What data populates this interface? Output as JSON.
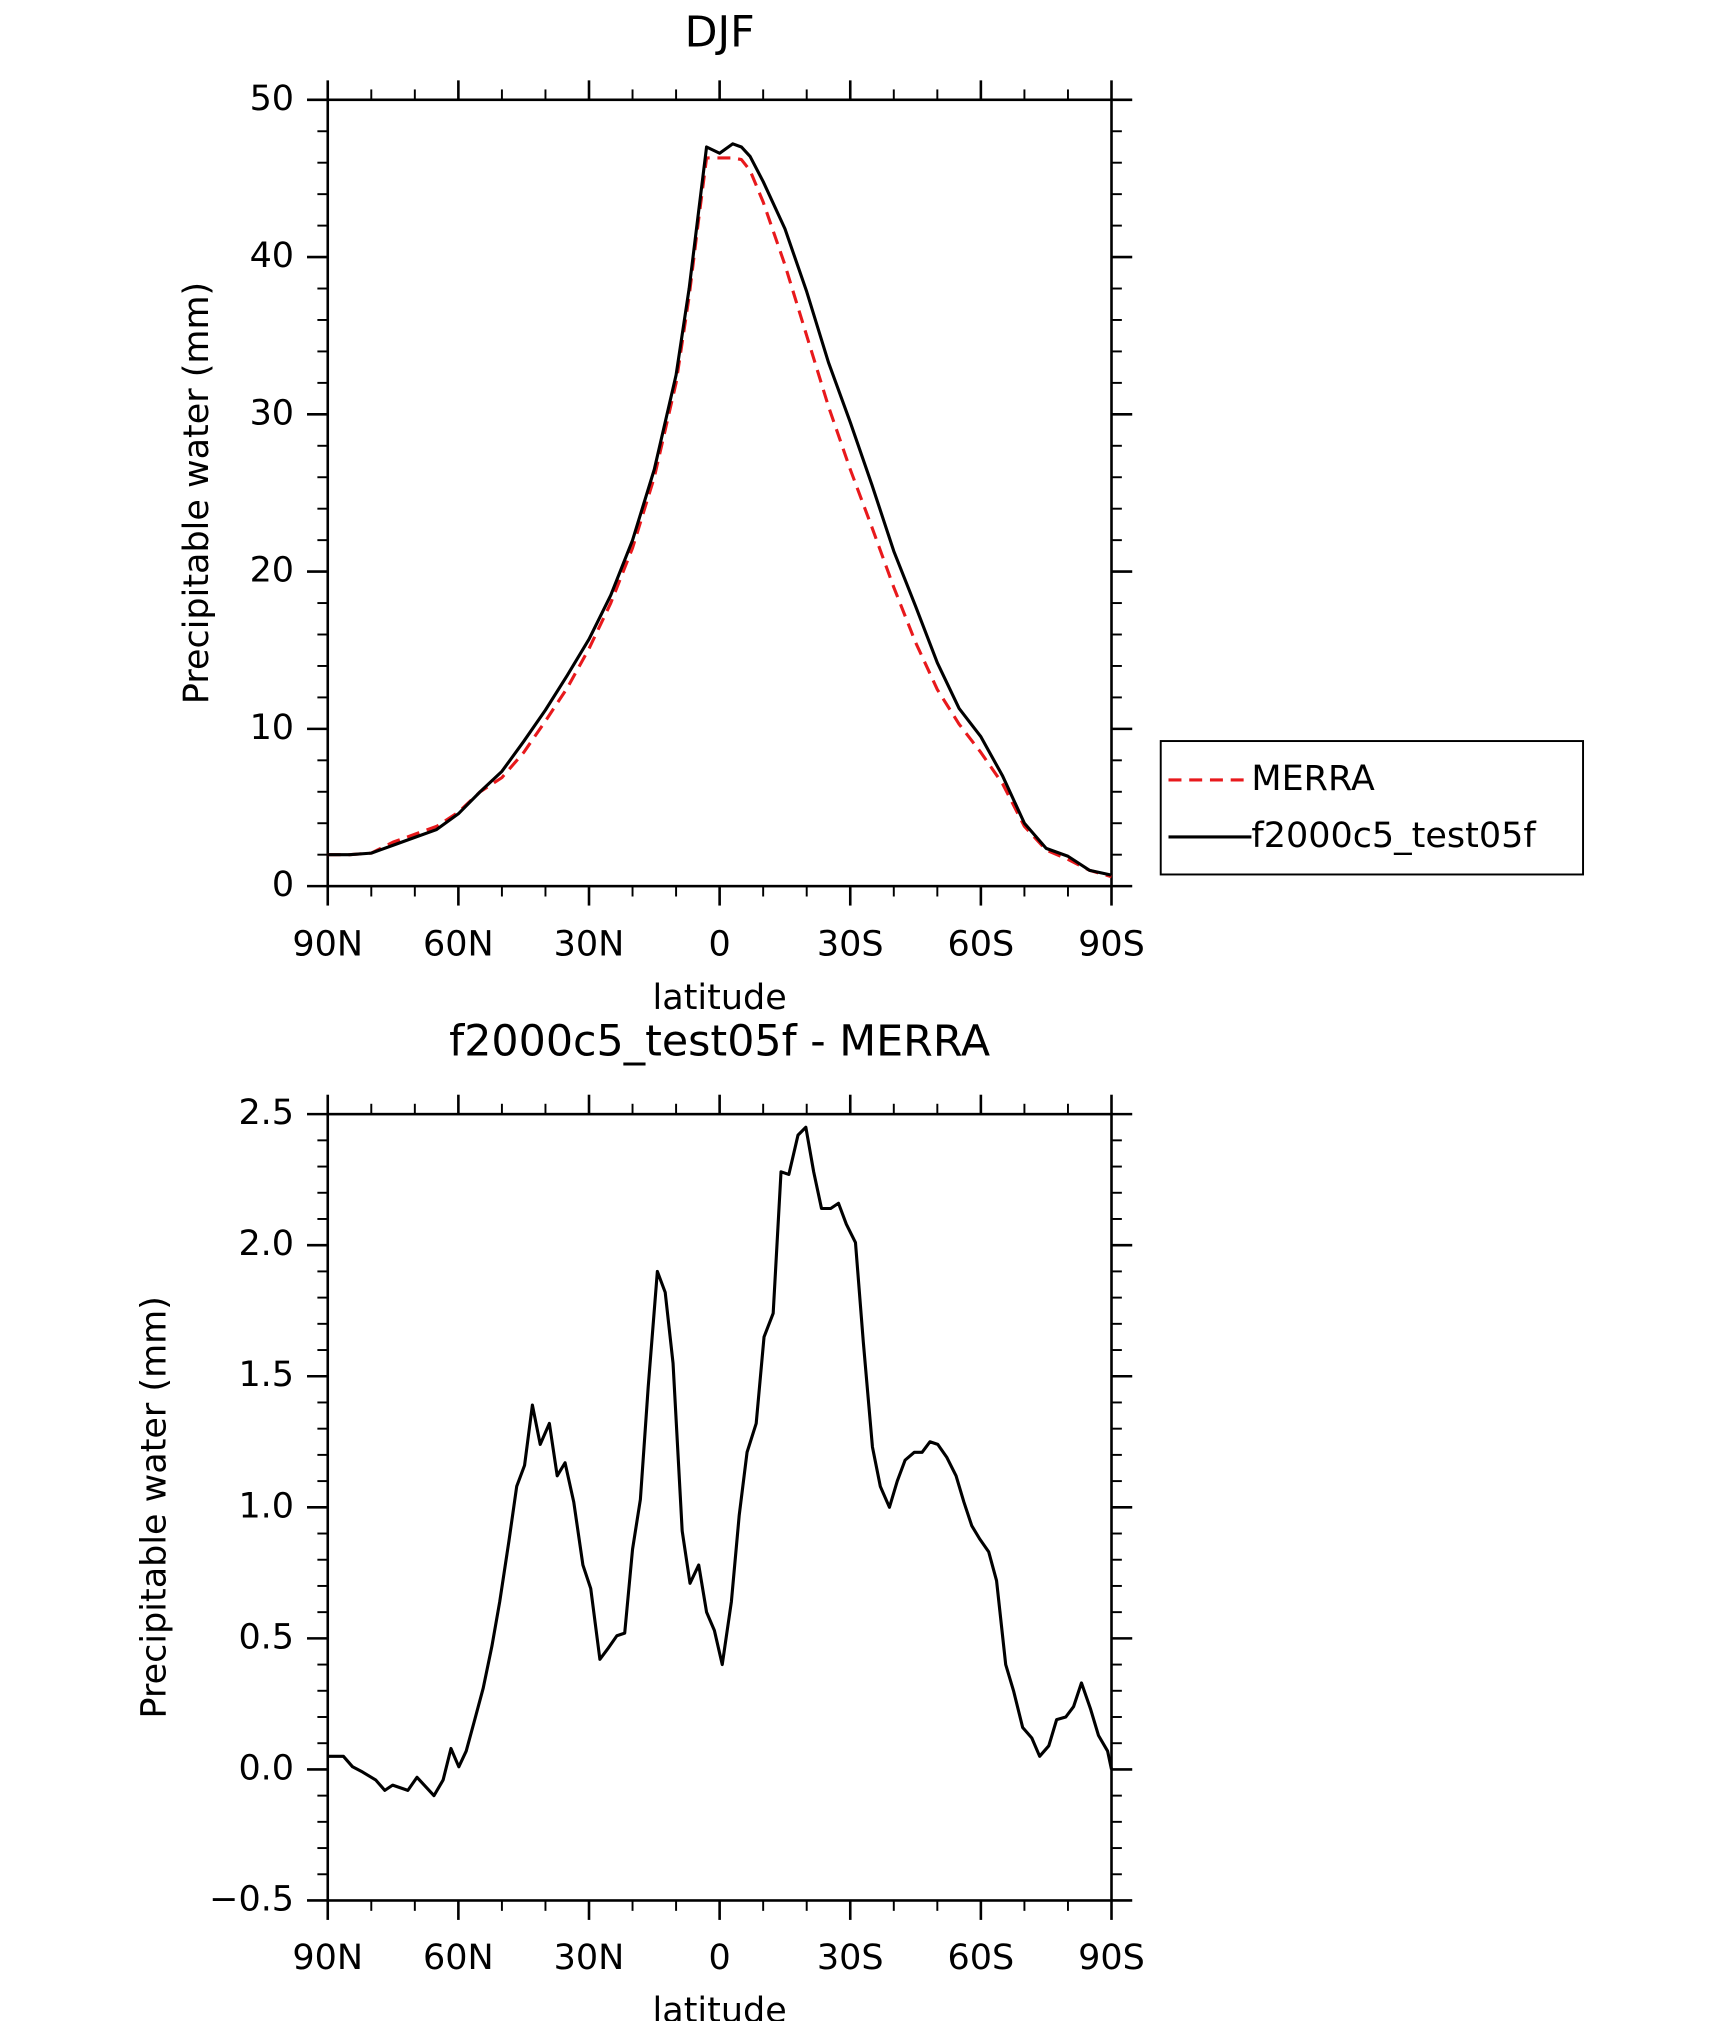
{
  "chart_data": [
    {
      "type": "line",
      "title": "DJF",
      "xlabel": "latitude",
      "ylabel": "Precipitable water (mm)",
      "x": [
        90,
        85,
        80,
        75,
        70,
        65,
        60,
        55,
        50,
        45,
        40,
        35,
        30,
        25,
        20,
        15,
        10,
        7,
        5,
        3,
        0,
        -3,
        -5,
        -7,
        -10,
        -15,
        -20,
        -25,
        -30,
        -35,
        -40,
        -45,
        -50,
        -55,
        -60,
        -65,
        -70,
        -75,
        -80,
        -85,
        -90
      ],
      "series": [
        {
          "name": "MERRA",
          "color": "#e8191c",
          "linestyle": "dashed",
          "values": [
            2.0,
            2.0,
            2.1,
            2.8,
            3.3,
            3.8,
            4.7,
            6.0,
            6.9,
            8.5,
            10.5,
            12.6,
            15.1,
            18.0,
            21.5,
            26.0,
            32.0,
            37.5,
            42.0,
            46.3,
            46.3,
            46.3,
            46.2,
            45.5,
            43.5,
            39.5,
            35.0,
            30.5,
            26.5,
            22.8,
            19.0,
            15.5,
            12.5,
            10.3,
            8.5,
            6.5,
            3.8,
            2.3,
            1.7,
            1.0,
            0.6
          ]
        },
        {
          "name": "f2000c5_test05f",
          "color": "#000000",
          "linestyle": "solid",
          "values": [
            2.0,
            2.0,
            2.1,
            2.6,
            3.1,
            3.6,
            4.6,
            6.0,
            7.3,
            9.2,
            11.2,
            13.4,
            15.7,
            18.5,
            22.0,
            26.5,
            32.5,
            38.0,
            42.5,
            47.0,
            46.6,
            47.2,
            47.0,
            46.4,
            44.8,
            41.8,
            37.8,
            33.3,
            29.5,
            25.5,
            21.3,
            17.8,
            14.2,
            11.3,
            9.5,
            7.0,
            4.0,
            2.4,
            1.9,
            1.0,
            0.7
          ]
        }
      ],
      "xlim": [
        90,
        -90
      ],
      "xticks": [
        {
          "value": 90,
          "label": "90N"
        },
        {
          "value": 60,
          "label": "60N"
        },
        {
          "value": 30,
          "label": "30N"
        },
        0,
        {
          "value": -30,
          "label": "30S"
        },
        {
          "value": -60,
          "label": "60S"
        },
        {
          "value": -90,
          "label": "90S"
        }
      ],
      "ylim": [
        0,
        50
      ],
      "yticks": [
        0,
        10,
        20,
        30,
        40,
        50
      ],
      "legend": "right"
    },
    {
      "type": "line",
      "title": "f2000c5_test05f - MERRA",
      "xlabel": "latitude",
      "ylabel": "Precipitable water (mm)",
      "x": [
        90.0,
        86.4,
        84.3,
        82.0,
        79.0,
        76.9,
        75.1,
        71.6,
        69.5,
        65.6,
        63.5,
        61.7,
        59.9,
        58.2,
        56.4,
        54.3,
        52.3,
        50.5,
        48.4,
        46.6,
        44.8,
        43.0,
        41.2,
        39.1,
        37.3,
        35.5,
        33.5,
        31.4,
        29.6,
        27.5,
        25.7,
        23.6,
        21.8,
        20.0,
        18.2,
        16.4,
        14.3,
        12.5,
        10.7,
        8.6,
        6.8,
        4.8,
        3.0,
        1.2,
        -0.6,
        -2.7,
        -4.5,
        -6.3,
        -8.4,
        -10.2,
        -12.3,
        -14.1,
        -15.9,
        -18.0,
        -19.8,
        -21.6,
        -23.4,
        -25.5,
        -27.3,
        -29.1,
        -31.2,
        -33.0,
        -35.1,
        -36.9,
        -39.0,
        -40.8,
        -42.6,
        -44.7,
        -46.5,
        -48.3,
        -50.1,
        -52.2,
        -54.3,
        -56.1,
        -57.9,
        -59.7,
        -61.8,
        -63.6,
        -65.7,
        -67.5,
        -69.6,
        -71.7,
        -73.5,
        -75.6,
        -77.4,
        -79.5,
        -81.3,
        -83.1,
        -85.2,
        -87.0,
        -89.1,
        -90.0
      ],
      "series": [
        {
          "color": "#000000",
          "linestyle": "solid",
          "values": [
            0.05,
            0.05,
            0.01,
            -0.01,
            -0.04,
            -0.08,
            -0.06,
            -0.08,
            -0.03,
            -0.1,
            -0.04,
            0.08,
            0.01,
            0.07,
            0.18,
            0.31,
            0.47,
            0.64,
            0.87,
            1.08,
            1.16,
            1.39,
            1.24,
            1.32,
            1.12,
            1.17,
            1.02,
            0.78,
            0.69,
            0.42,
            0.46,
            0.51,
            0.52,
            0.84,
            1.03,
            1.46,
            1.9,
            1.82,
            1.55,
            0.91,
            0.71,
            0.78,
            0.6,
            0.53,
            0.4,
            0.64,
            0.97,
            1.21,
            1.32,
            1.65,
            1.74,
            2.28,
            2.27,
            2.42,
            2.45,
            2.28,
            2.14,
            2.14,
            2.16,
            2.08,
            2.01,
            1.63,
            1.23,
            1.08,
            1.0,
            1.1,
            1.18,
            1.21,
            1.21,
            1.25,
            1.24,
            1.19,
            1.12,
            1.02,
            0.93,
            0.88,
            0.83,
            0.72,
            0.4,
            0.3,
            0.16,
            0.12,
            0.05,
            0.09,
            0.19,
            0.2,
            0.24,
            0.33,
            0.23,
            0.13,
            0.07,
            0.0
          ]
        }
      ],
      "xlim": [
        90,
        -90
      ],
      "xticks": [
        {
          "value": 90,
          "label": "90N"
        },
        {
          "value": 60,
          "label": "60N"
        },
        {
          "value": 30,
          "label": "30N"
        },
        0,
        {
          "value": -30,
          "label": "30S"
        },
        {
          "value": -60,
          "label": "60S"
        },
        {
          "value": -90,
          "label": "90S"
        }
      ],
      "ylim": [
        -0.5,
        2.5
      ],
      "yticks": [
        {
          "value": -0.5,
          "label": "−0.5"
        },
        {
          "value": 0,
          "label": "0.0"
        },
        0.5,
        {
          "value": 1,
          "label": "1.0"
        },
        1.5,
        {
          "value": 2,
          "label": "2.0"
        },
        2.5
      ]
    }
  ]
}
